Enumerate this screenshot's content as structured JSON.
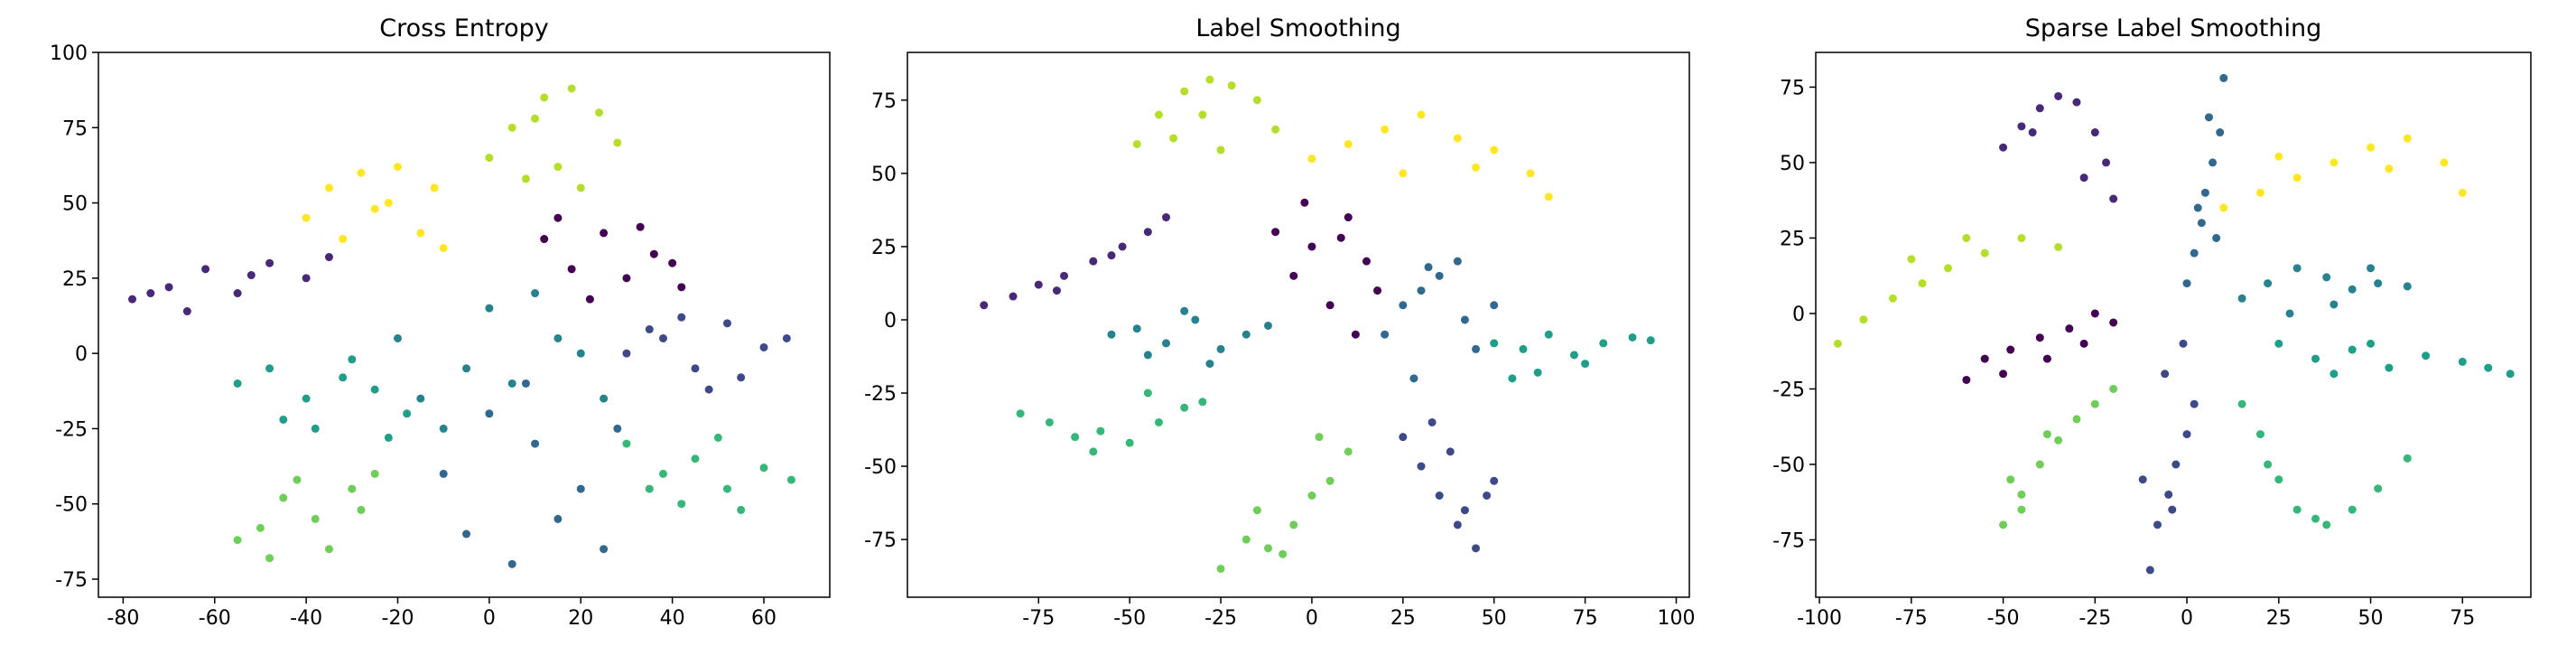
{
  "chart_data": [
    {
      "type": "scatter",
      "title": "Cross Entropy",
      "xlim": [
        -85.4,
        74.4
      ],
      "ylim": [
        -81,
        100
      ],
      "xticks": [
        -80,
        -60,
        -40,
        -20,
        0,
        20,
        40,
        60
      ],
      "yticks": [
        -75,
        -50,
        -25,
        0,
        25,
        50,
        75,
        100
      ],
      "series": [
        {
          "color": "#440154",
          "x": [
            12,
            18,
            25,
            30,
            36,
            42,
            22,
            33,
            40,
            15
          ],
          "y": [
            38,
            28,
            40,
            25,
            33,
            22,
            18,
            42,
            30,
            45
          ]
        },
        {
          "color": "#482878",
          "x": [
            -78,
            -70,
            -62,
            -55,
            -48,
            -40,
            -66,
            -52,
            -35,
            -74
          ],
          "y": [
            18,
            22,
            28,
            20,
            30,
            25,
            14,
            26,
            32,
            20
          ]
        },
        {
          "color": "#3e4989",
          "x": [
            30,
            38,
            45,
            52,
            60,
            65,
            42,
            55,
            48,
            35
          ],
          "y": [
            0,
            5,
            -5,
            10,
            2,
            5,
            12,
            -8,
            -12,
            8
          ]
        },
        {
          "color": "#31688e",
          "x": [
            -5,
            5,
            15,
            25,
            -10,
            10,
            20,
            0,
            28,
            8
          ],
          "y": [
            -60,
            -70,
            -55,
            -65,
            -40,
            -30,
            -45,
            -20,
            -25,
            -10
          ]
        },
        {
          "color": "#26828e",
          "x": [
            -15,
            -5,
            5,
            15,
            25,
            -20,
            0,
            20,
            10,
            -10
          ],
          "y": [
            -15,
            -5,
            -10,
            5,
            -15,
            5,
            15,
            0,
            20,
            -25
          ]
        },
        {
          "color": "#1f9e89",
          "x": [
            -55,
            -48,
            -40,
            -32,
            -25,
            -18,
            -45,
            -30,
            -38,
            -22
          ],
          "y": [
            -10,
            -5,
            -15,
            -8,
            -12,
            -20,
            -22,
            -2,
            -25,
            -28
          ]
        },
        {
          "color": "#35b779",
          "x": [
            30,
            38,
            45,
            52,
            60,
            66,
            42,
            55,
            35,
            50
          ],
          "y": [
            -30,
            -40,
            -35,
            -45,
            -38,
            -42,
            -50,
            -52,
            -45,
            -28
          ]
        },
        {
          "color": "#6ece58",
          "x": [
            -55,
            -50,
            -45,
            -38,
            -30,
            -25,
            -48,
            -35,
            -42,
            -28
          ],
          "y": [
            -62,
            -58,
            -48,
            -55,
            -45,
            -40,
            -68,
            -65,
            -42,
            -52
          ]
        },
        {
          "color": "#b5de2b",
          "x": [
            0,
            5,
            12,
            18,
            24,
            28,
            8,
            15,
            20,
            10
          ],
          "y": [
            65,
            75,
            85,
            88,
            80,
            70,
            58,
            62,
            55,
            78
          ]
        },
        {
          "color": "#fde725",
          "x": [
            -40,
            -35,
            -28,
            -22,
            -15,
            -10,
            -32,
            -20,
            -25,
            -12
          ],
          "y": [
            45,
            55,
            60,
            50,
            40,
            35,
            38,
            62,
            48,
            55
          ]
        }
      ]
    },
    {
      "type": "scatter",
      "title": "Label Smoothing",
      "xlim": [
        -111,
        103.6
      ],
      "ylim": [
        -94.7,
        91.3
      ],
      "xticks": [
        -75,
        -50,
        -25,
        0,
        25,
        50,
        75,
        100
      ],
      "yticks": [
        -75,
        -50,
        -25,
        0,
        25,
        50,
        75
      ],
      "series": [
        {
          "color": "#440154",
          "x": [
            -10,
            -5,
            0,
            5,
            10,
            15,
            18,
            -2,
            8,
            12
          ],
          "y": [
            30,
            15,
            25,
            5,
            35,
            20,
            10,
            40,
            28,
            -5
          ]
        },
        {
          "color": "#482878",
          "x": [
            -90,
            -82,
            -75,
            -68,
            -60,
            -52,
            -45,
            -40,
            -70,
            -55
          ],
          "y": [
            5,
            8,
            12,
            15,
            20,
            25,
            30,
            35,
            10,
            22
          ]
        },
        {
          "color": "#3e4989",
          "x": [
            25,
            30,
            35,
            40,
            45,
            50,
            38,
            42,
            33,
            48
          ],
          "y": [
            -40,
            -50,
            -60,
            -70,
            -78,
            -55,
            -45,
            -65,
            -35,
            -60
          ]
        },
        {
          "color": "#31688e",
          "x": [
            20,
            25,
            30,
            35,
            40,
            45,
            50,
            28,
            42,
            32
          ],
          "y": [
            -5,
            5,
            10,
            15,
            20,
            -10,
            5,
            -20,
            0,
            18
          ]
        },
        {
          "color": "#26828e",
          "x": [
            -55,
            -48,
            -40,
            -32,
            -25,
            -18,
            -12,
            -45,
            -28,
            -35
          ],
          "y": [
            -5,
            -3,
            -8,
            0,
            -10,
            -5,
            -2,
            -12,
            -15,
            3
          ]
        },
        {
          "color": "#1f9e89",
          "x": [
            50,
            58,
            65,
            72,
            80,
            88,
            93,
            62,
            75,
            55
          ],
          "y": [
            -8,
            -10,
            -5,
            -12,
            -8,
            -6,
            -7,
            -18,
            -15,
            -20
          ]
        },
        {
          "color": "#35b779",
          "x": [
            -80,
            -72,
            -65,
            -58,
            -50,
            -42,
            -35,
            -30,
            -60,
            -45
          ],
          "y": [
            -32,
            -35,
            -40,
            -38,
            -42,
            -35,
            -30,
            -28,
            -45,
            -25
          ]
        },
        {
          "color": "#6ece58",
          "x": [
            -25,
            -18,
            -12,
            -5,
            0,
            5,
            10,
            -15,
            -8,
            2
          ],
          "y": [
            -85,
            -75,
            -78,
            -70,
            -60,
            -55,
            -45,
            -65,
            -80,
            -40
          ]
        },
        {
          "color": "#b5de2b",
          "x": [
            -48,
            -42,
            -35,
            -28,
            -22,
            -15,
            -10,
            -38,
            -25,
            -30
          ],
          "y": [
            60,
            70,
            78,
            82,
            80,
            75,
            65,
            62,
            58,
            70
          ]
        },
        {
          "color": "#fde725",
          "x": [
            0,
            10,
            20,
            30,
            40,
            50,
            60,
            65,
            25,
            45
          ],
          "y": [
            55,
            60,
            65,
            70,
            62,
            58,
            50,
            42,
            50,
            52
          ]
        }
      ]
    },
    {
      "type": "scatter",
      "title": "Sparse Label Smoothing",
      "xlim": [
        -101,
        93.6
      ],
      "ylim": [
        -94,
        86.5
      ],
      "xticks": [
        -100,
        -75,
        -50,
        -25,
        0,
        25,
        50,
        75
      ],
      "yticks": [
        -75,
        -50,
        -25,
        0,
        25,
        50,
        75
      ],
      "series": [
        {
          "color": "#440154",
          "x": [
            -60,
            -55,
            -48,
            -40,
            -32,
            -25,
            -20,
            -50,
            -38,
            -28
          ],
          "y": [
            -22,
            -15,
            -12,
            -8,
            -5,
            0,
            -3,
            -20,
            -15,
            -10
          ]
        },
        {
          "color": "#482878",
          "x": [
            -50,
            -45,
            -40,
            -35,
            -30,
            -25,
            -22,
            -20,
            -42,
            -28
          ],
          "y": [
            55,
            62,
            68,
            72,
            70,
            60,
            50,
            38,
            60,
            45
          ]
        },
        {
          "color": "#3e4989",
          "x": [
            -10,
            -8,
            -5,
            -3,
            0,
            2,
            -6,
            -1,
            -12,
            -4
          ],
          "y": [
            -85,
            -70,
            -60,
            -50,
            -40,
            -30,
            -20,
            -10,
            -55,
            -65
          ]
        },
        {
          "color": "#31688e",
          "x": [
            0,
            2,
            4,
            5,
            7,
            9,
            10,
            3,
            6,
            8
          ],
          "y": [
            10,
            20,
            30,
            40,
            50,
            60,
            78,
            35,
            65,
            25
          ]
        },
        {
          "color": "#26828e",
          "x": [
            15,
            22,
            30,
            38,
            45,
            52,
            60,
            28,
            40,
            50
          ],
          "y": [
            5,
            10,
            15,
            12,
            8,
            10,
            9,
            0,
            3,
            15
          ]
        },
        {
          "color": "#1f9e89",
          "x": [
            25,
            35,
            45,
            55,
            65,
            75,
            82,
            88,
            50,
            40
          ],
          "y": [
            -10,
            -15,
            -12,
            -18,
            -14,
            -16,
            -18,
            -20,
            -10,
            -20
          ]
        },
        {
          "color": "#35b779",
          "x": [
            15,
            20,
            25,
            30,
            38,
            45,
            52,
            60,
            22,
            35
          ],
          "y": [
            -30,
            -40,
            -55,
            -65,
            -70,
            -65,
            -58,
            -48,
            -50,
            -68
          ]
        },
        {
          "color": "#6ece58",
          "x": [
            -50,
            -45,
            -40,
            -35,
            -30,
            -25,
            -20,
            -45,
            -38,
            -48
          ],
          "y": [
            -70,
            -60,
            -50,
            -42,
            -35,
            -30,
            -25,
            -65,
            -40,
            -55
          ]
        },
        {
          "color": "#b5de2b",
          "x": [
            -95,
            -88,
            -80,
            -72,
            -65,
            -55,
            -45,
            -35,
            -60,
            -75
          ],
          "y": [
            -10,
            -2,
            5,
            10,
            15,
            20,
            25,
            22,
            25,
            18
          ]
        },
        {
          "color": "#fde725",
          "x": [
            10,
            20,
            30,
            40,
            50,
            60,
            70,
            75,
            25,
            55
          ],
          "y": [
            35,
            40,
            45,
            50,
            55,
            58,
            50,
            40,
            52,
            48
          ]
        }
      ]
    }
  ]
}
